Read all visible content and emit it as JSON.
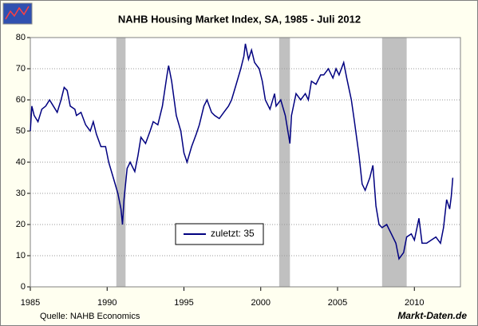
{
  "chart_data": {
    "type": "line",
    "title": "NAHB Housing Market Index, SA, 1985 - Juli 2012",
    "source": "Quelle: NAHB Economics",
    "brand": "Markt-Daten.de",
    "xlim": [
      1985,
      2013
    ],
    "xticks": [
      1985,
      1990,
      1995,
      2000,
      2005,
      2010
    ],
    "ylim": [
      0,
      80
    ],
    "yticks": [
      0,
      10,
      20,
      30,
      40,
      50,
      60,
      70,
      80
    ],
    "grid": true,
    "shaded_periods": [
      [
        1990.6,
        1991.2
      ],
      [
        2001.2,
        2001.9
      ],
      [
        2007.9,
        2009.5
      ]
    ],
    "shade_color": "#c0c0c0",
    "series": [
      {
        "name": "zuletzt: 35",
        "color": "#000080",
        "x": [
          1985.0,
          1985.1,
          1985.25,
          1985.5,
          1985.75,
          1986.0,
          1986.25,
          1986.5,
          1986.75,
          1987.0,
          1987.2,
          1987.4,
          1987.6,
          1987.9,
          1988.0,
          1988.3,
          1988.6,
          1988.9,
          1989.1,
          1989.3,
          1989.6,
          1989.9,
          1990.1,
          1990.4,
          1990.7,
          1990.9,
          1991.0,
          1991.1,
          1991.3,
          1991.5,
          1991.8,
          1992.0,
          1992.2,
          1992.5,
          1992.8,
          1993.0,
          1993.3,
          1993.6,
          1993.9,
          1994.0,
          1994.2,
          1994.5,
          1994.8,
          1995.0,
          1995.2,
          1995.5,
          1995.8,
          1996.0,
          1996.3,
          1996.5,
          1996.8,
          1997.0,
          1997.3,
          1997.6,
          1997.9,
          1998.1,
          1998.4,
          1998.7,
          1998.9,
          1999.0,
          1999.2,
          1999.4,
          1999.6,
          1999.9,
          2000.1,
          2000.3,
          2000.6,
          2000.9,
          2001.0,
          2001.3,
          2001.6,
          2001.9,
          2002.0,
          2002.3,
          2002.6,
          2002.9,
          2003.1,
          2003.3,
          2003.6,
          2003.9,
          2004.1,
          2004.4,
          2004.7,
          2004.9,
          2005.1,
          2005.4,
          2005.6,
          2005.9,
          2006.1,
          2006.4,
          2006.6,
          2006.8,
          2007.1,
          2007.3,
          2007.5,
          2007.7,
          2007.9,
          2008.2,
          2008.5,
          2008.8,
          2009.0,
          2009.3,
          2009.5,
          2009.8,
          2010.0,
          2010.3,
          2010.5,
          2010.8,
          2011.1,
          2011.4,
          2011.7,
          2011.9,
          2012.1,
          2012.3,
          2012.4,
          2012.5
        ],
        "values": [
          50,
          58,
          55,
          53,
          57,
          58,
          60,
          58,
          56,
          60,
          64,
          63,
          58,
          57,
          55,
          56,
          52,
          50,
          53,
          49,
          45,
          45,
          40,
          35,
          30,
          25,
          20,
          28,
          38,
          40,
          37,
          42,
          48,
          46,
          50,
          53,
          52,
          58,
          68,
          71,
          66,
          55,
          50,
          43,
          40,
          45,
          49,
          52,
          58,
          60,
          56,
          55,
          54,
          56,
          58,
          60,
          65,
          70,
          74,
          78,
          73,
          76,
          72,
          70,
          66,
          60,
          57,
          62,
          58,
          60,
          55,
          46,
          55,
          62,
          60,
          62,
          60,
          66,
          65,
          68,
          68,
          70,
          67,
          70,
          68,
          72,
          67,
          60,
          53,
          42,
          33,
          31,
          35,
          39,
          26,
          20,
          19,
          20,
          17,
          14,
          9,
          11,
          16,
          17,
          15,
          22,
          14,
          14,
          15,
          16,
          14,
          19,
          28,
          25,
          29,
          35
        ]
      }
    ]
  }
}
